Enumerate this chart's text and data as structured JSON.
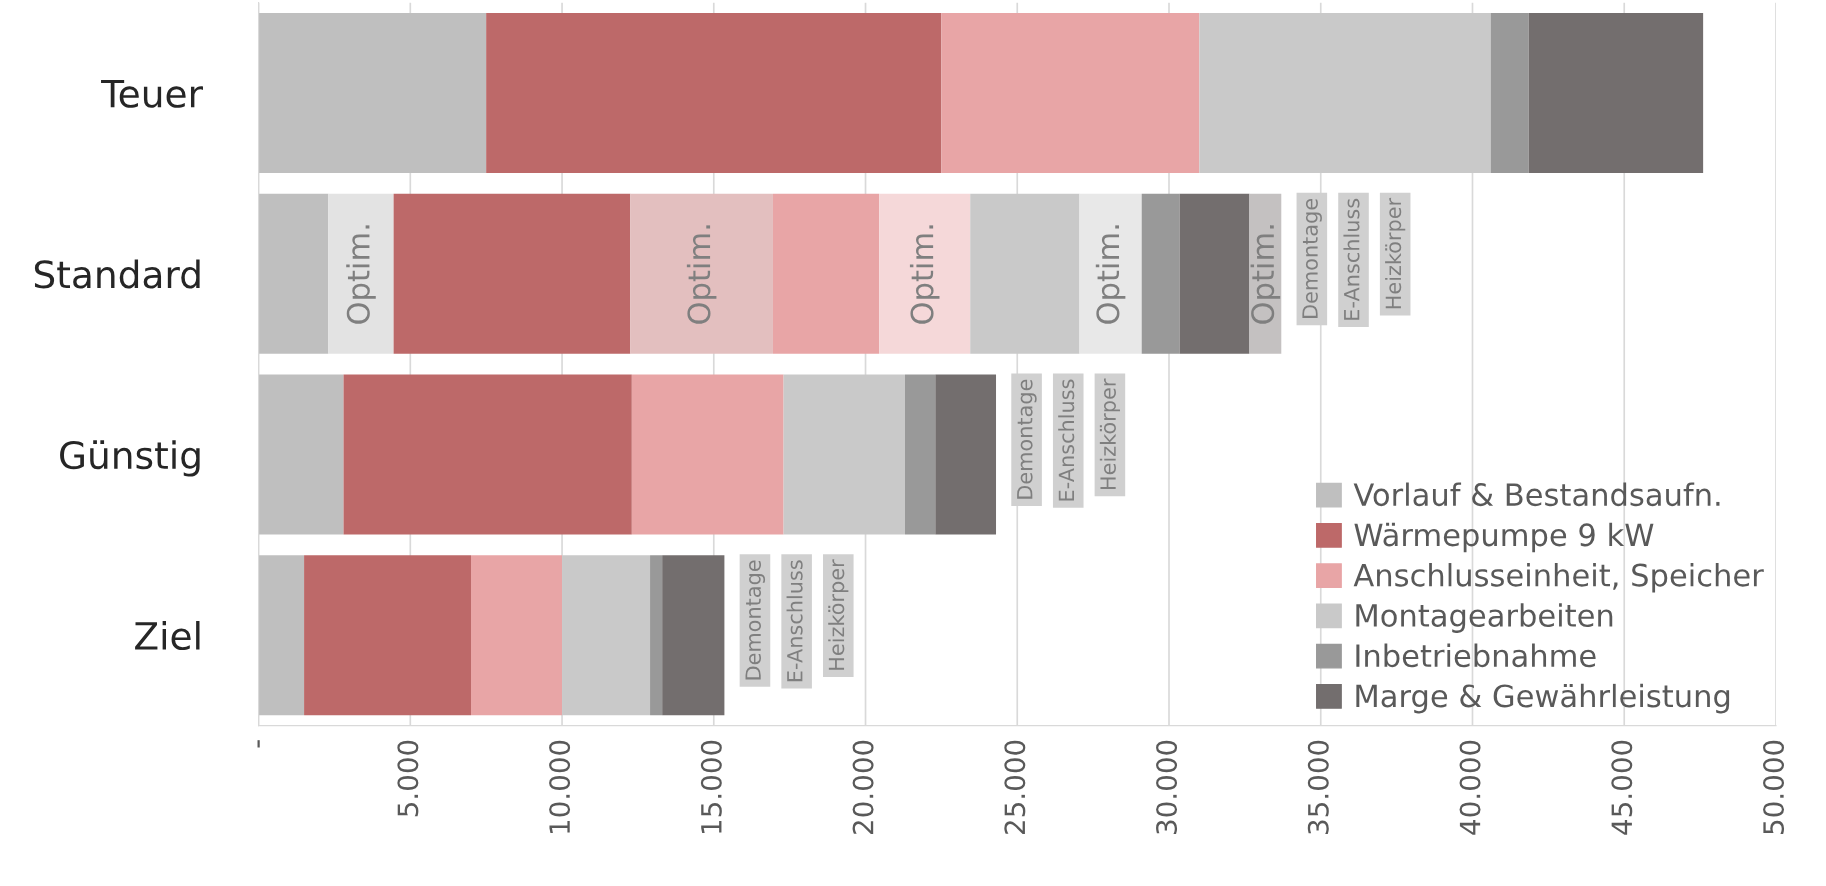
{
  "chart_data": {
    "type": "bar",
    "orientation": "horizontal",
    "stacked": true,
    "categories": [
      "Teuer",
      "Standard",
      "Günstig",
      "Ziel"
    ],
    "series": [
      {
        "name": "Vorlauf & Bestandsaufn.",
        "color": "#bfbfbf",
        "values": [
          7500,
          2300,
          2800,
          1500
        ]
      },
      {
        "color": "#e3e3e3",
        "values": [
          null,
          2150,
          null,
          null
        ],
        "value_labels": [
          null,
          "Optim.",
          null,
          null
        ]
      },
      {
        "name": "Wärmepumpe 9 kW",
        "color": "#bd6969",
        "values": [
          15000,
          7800,
          9500,
          5500
        ]
      },
      {
        "color": "#e3bfbf",
        "values": [
          null,
          4700,
          null,
          null
        ],
        "value_labels": [
          null,
          "Optim.",
          null,
          null
        ]
      },
      {
        "name": "Anschlusseinheit, Speicher",
        "color": "#e8a5a6",
        "values": [
          8500,
          3500,
          5000,
          3000
        ]
      },
      {
        "color": "#f5d8d9",
        "values": [
          null,
          3000,
          null,
          null
        ],
        "value_labels": [
          null,
          "Optim.",
          null,
          null
        ]
      },
      {
        "name": "Montagearbeiten",
        "color": "#c9c9c9",
        "values": [
          9600,
          3600,
          4000,
          2900
        ]
      },
      {
        "color": "#e8e8e8",
        "values": [
          null,
          2050,
          null,
          null
        ],
        "value_labels": [
          null,
          "Optim.",
          null,
          null
        ]
      },
      {
        "name": "Inbetriebnahme",
        "color": "#999999",
        "values": [
          1250,
          1250,
          1000,
          400
        ]
      },
      {
        "name": "Marge & Gewährleistung",
        "color": "#736e6e",
        "values": [
          5750,
          2300,
          2000,
          2050
        ]
      },
      {
        "color": "#c4c1c1",
        "values": [
          null,
          1050,
          null,
          null
        ],
        "value_labels": [
          null,
          "Optim.",
          null,
          null
        ]
      }
    ],
    "xlim": [
      0,
      50000
    ],
    "xticks": [
      {
        "value": 0,
        "label": "-"
      },
      {
        "value": 5000,
        "label": "5.000"
      },
      {
        "value": 10000,
        "label": "10.000"
      },
      {
        "value": 15000,
        "label": "15.000"
      },
      {
        "value": 20000,
        "label": "20.000"
      },
      {
        "value": 25000,
        "label": "25.000"
      },
      {
        "value": 30000,
        "label": "30.000"
      },
      {
        "value": 35000,
        "label": "35.000"
      },
      {
        "value": 40000,
        "label": "40.000"
      },
      {
        "value": 45000,
        "label": "45.000"
      },
      {
        "value": 50000,
        "label": "50.000"
      }
    ],
    "grid": "x",
    "legend": "bottom right",
    "annotations": [
      "Demontage",
      "E-Anschluss",
      "Heizkörper",
      "Demontage",
      "E-Anschluss",
      "Heizkörper",
      "Demontage",
      "E-Anschluss",
      "Heizkörper"
    ]
  }
}
